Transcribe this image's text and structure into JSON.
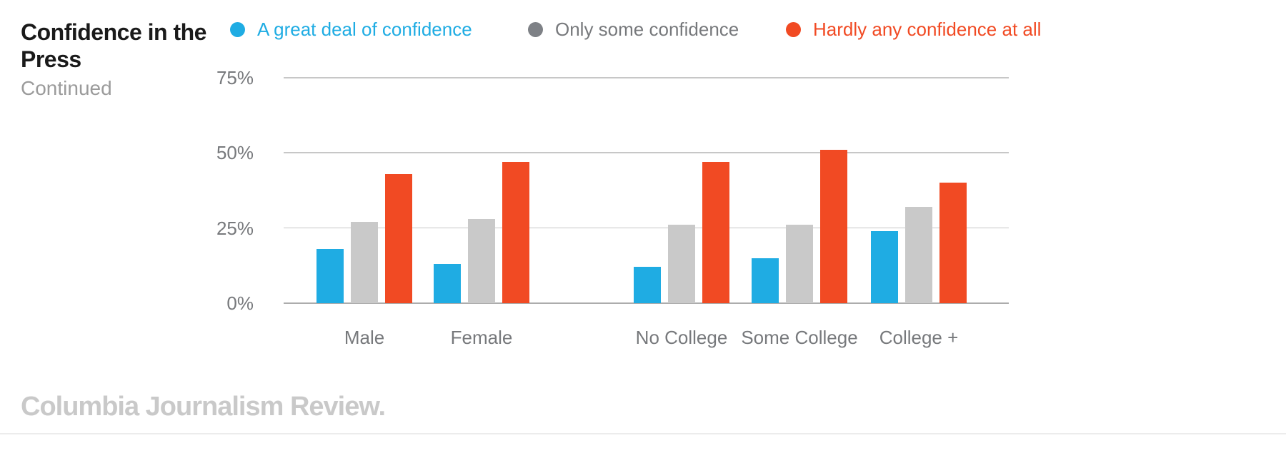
{
  "header": {
    "title": "Confidence in the Press",
    "subtitle": "Continued"
  },
  "legend": {
    "items": [
      {
        "id": "great-deal",
        "label": "A great deal of confidence",
        "dot_color": "#1FACE3",
        "text_color": "#1FACE3"
      },
      {
        "id": "only-some",
        "label": "Only some confidence",
        "dot_color": "#7E8186",
        "text_color": "#77797C"
      },
      {
        "id": "hardly-any",
        "label": "Hardly any confidence at all",
        "dot_color": "#F14A23",
        "text_color": "#F14A23"
      }
    ]
  },
  "chart_data": {
    "type": "bar",
    "title": "Confidence in the Press (Continued)",
    "categories": [
      "Male",
      "Female",
      "No College",
      "Some College",
      "College +"
    ],
    "category_clusters": [
      [
        "Male",
        "Female"
      ],
      [
        "No College",
        "Some College",
        "College +"
      ]
    ],
    "series": [
      {
        "name": "A great deal of confidence",
        "color": "#1FACE3",
        "values": [
          18,
          13,
          12,
          15,
          24
        ]
      },
      {
        "name": "Only some confidence",
        "color": "#C9C9C9",
        "values": [
          27,
          28,
          26,
          26,
          32
        ]
      },
      {
        "name": "Hardly any confidence at all",
        "color": "#F14A23",
        "values": [
          43,
          47,
          47,
          51,
          40
        ]
      }
    ],
    "unit": "%",
    "xlabel": "",
    "ylabel": "",
    "ylim": [
      0,
      75
    ],
    "yticks": [
      {
        "value": 0,
        "label": "0%"
      },
      {
        "value": 25,
        "label": "25%"
      },
      {
        "value": 50,
        "label": "50%"
      },
      {
        "value": 75,
        "label": "75%"
      }
    ],
    "grid": true,
    "gridline_color": "#C7C7C7",
    "baseline_color": "#ACACAC",
    "legend_position": "top"
  },
  "footer": {
    "brand": "Columbia Journalism Review."
  }
}
